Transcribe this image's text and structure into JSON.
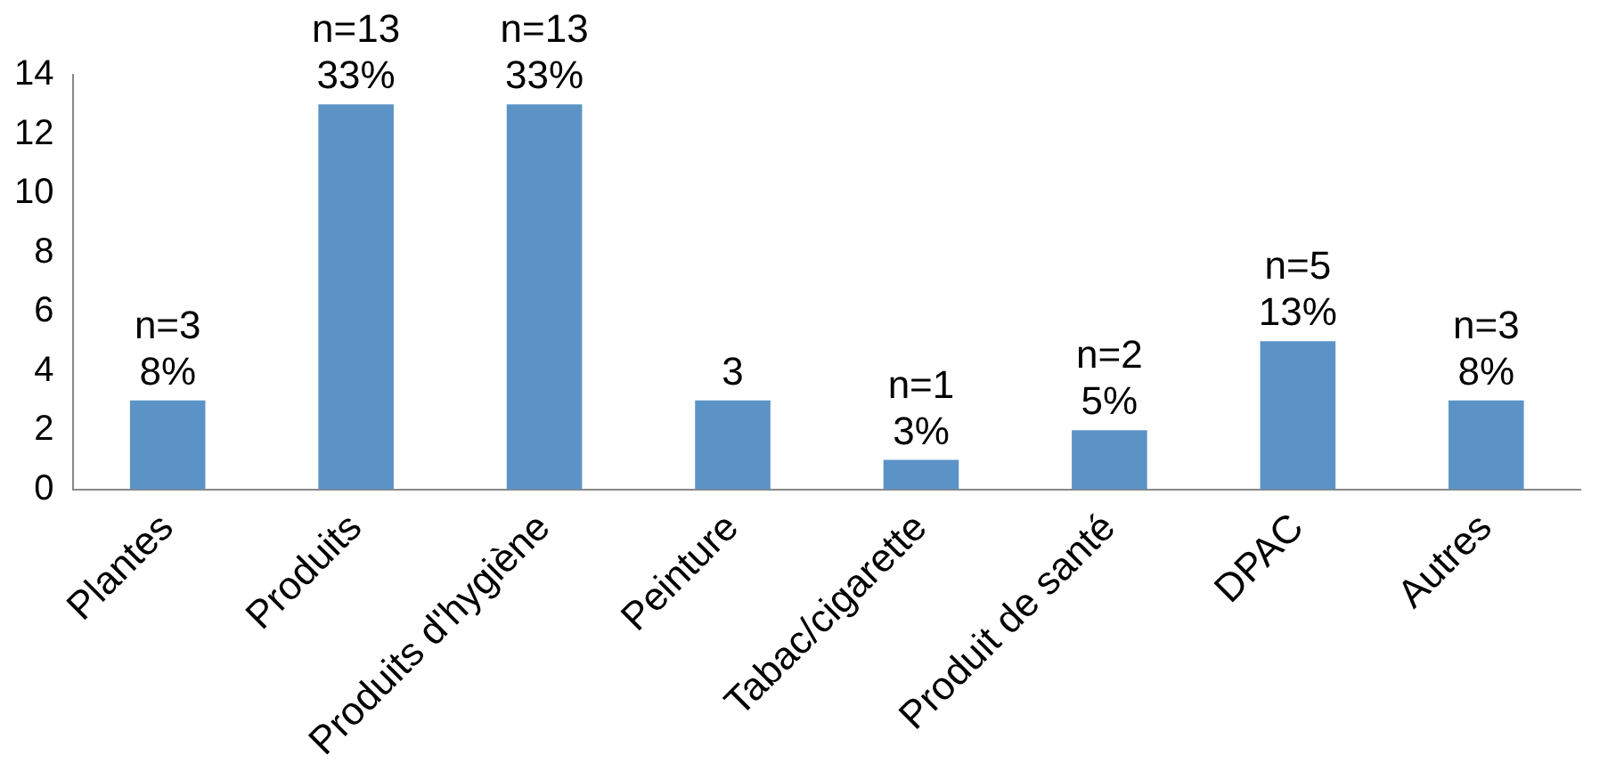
{
  "chart_data": {
    "type": "bar",
    "categories": [
      "Plantes",
      "Produits",
      "Produits d'hygiène",
      "Peinture",
      "Tabac/cigarette",
      "Produit de santé",
      "DPAC",
      "Autres"
    ],
    "values": [
      3,
      13,
      13,
      3,
      1,
      2,
      5,
      3
    ],
    "value_labels": [
      "n=3\n8%",
      "n=13\n33%",
      "n=13\n33%",
      "3",
      "n=1\n3%",
      "n=2\n5%",
      "n=5\n13%",
      "n=3\n8%"
    ],
    "color": "#5b93c7",
    "ylim": [
      0,
      14
    ],
    "yticks": [
      0,
      2,
      4,
      6,
      8,
      10,
      12,
      14
    ],
    "grid": false,
    "legend": false
  }
}
